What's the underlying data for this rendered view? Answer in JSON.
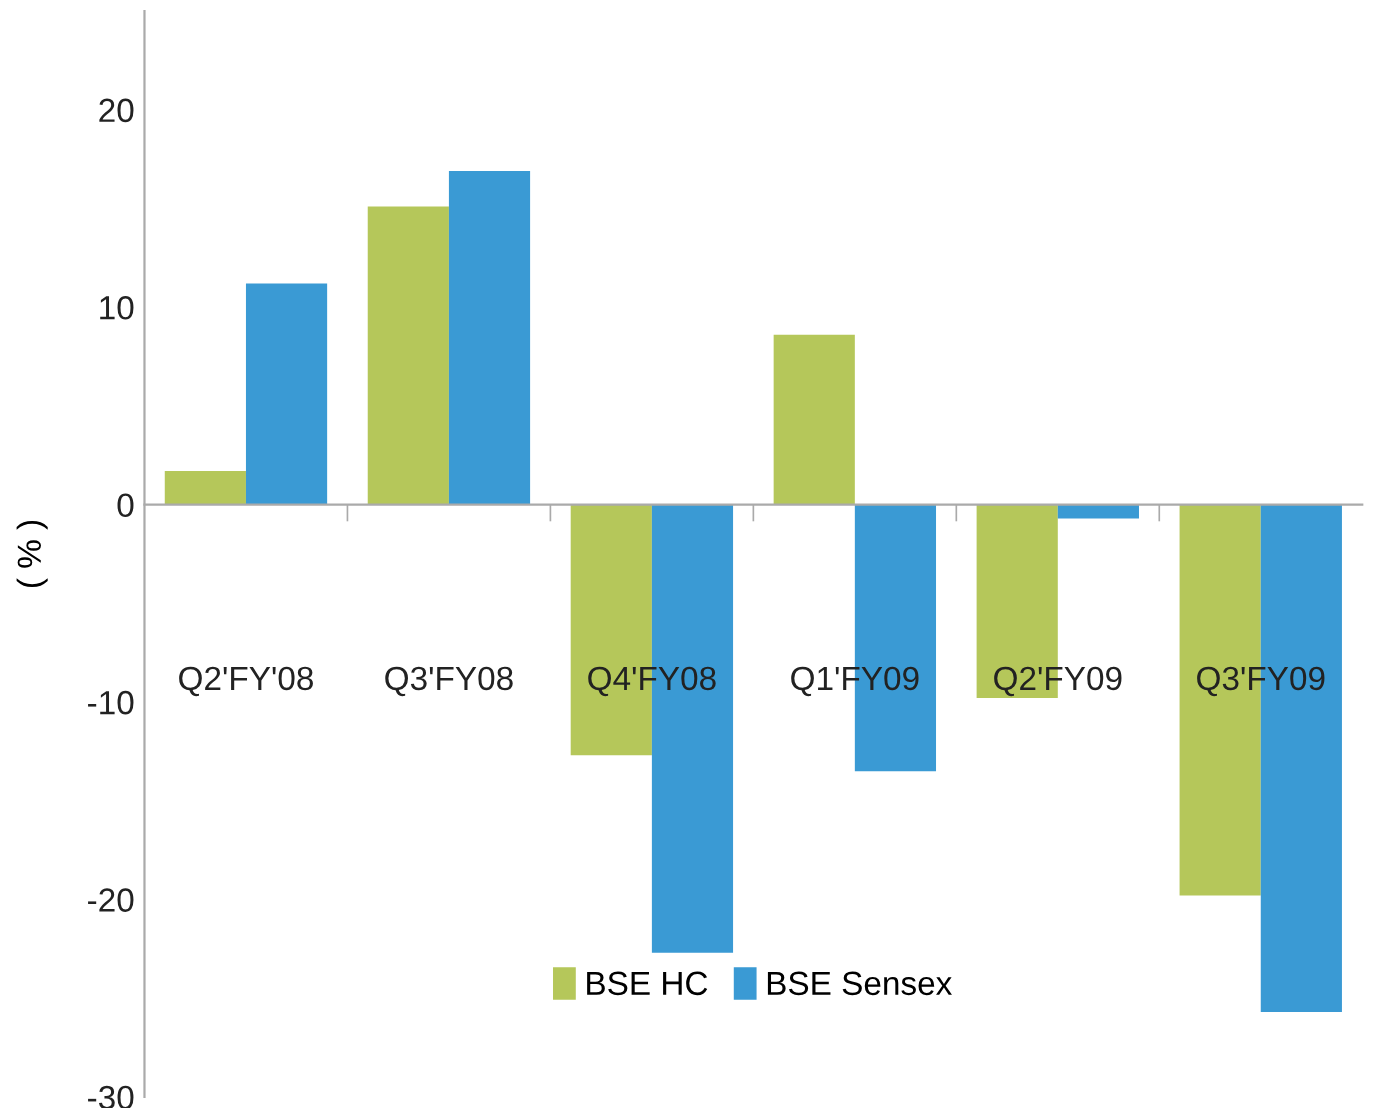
{
  "chart_data": {
    "type": "bar",
    "ylabel": "( % )",
    "categories": [
      "Q2'FY'08",
      "Q3'FY08",
      "Q4'FY08",
      "Q1'FY09",
      "Q2'FY09",
      "Q3'FY09"
    ],
    "series": [
      {
        "name": "BSE HC",
        "color": "#b5c75a",
        "values": [
          1.7,
          15.1,
          -12.7,
          8.6,
          -9.8,
          -19.8
        ]
      },
      {
        "name": "BSE Sensex",
        "color": "#3a9ad4",
        "values": [
          11.2,
          16.9,
          -22.7,
          -13.5,
          -0.7,
          -25.7
        ]
      }
    ],
    "ylim": [
      -30,
      25
    ],
    "yticks": [
      -30,
      -20,
      -10,
      0,
      10,
      20
    ],
    "legend": "bottom"
  }
}
